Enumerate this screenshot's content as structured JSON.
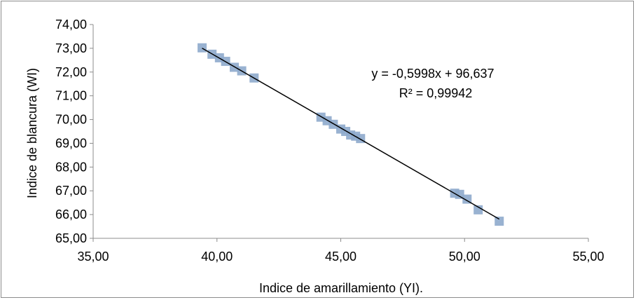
{
  "chart_data": {
    "type": "scatter",
    "title": "",
    "xlabel": "Indice de amarillamiento (YI).",
    "ylabel": "Indice de blancura (WI)",
    "xlim": [
      35,
      55
    ],
    "ylim": [
      65,
      74
    ],
    "x_ticks": [
      "35,00",
      "40,00",
      "45,00",
      "50,00",
      "55,00"
    ],
    "y_ticks": [
      "65,00",
      "66,00",
      "67,00",
      "68,00",
      "69,00",
      "70,00",
      "71,00",
      "72,00",
      "73,00",
      "74,00"
    ],
    "grid": false,
    "legend": "none",
    "series": [
      {
        "marker": "square",
        "color": "#8eaacc",
        "points": [
          {
            "x": 39.4,
            "y": 73.02
          },
          {
            "x": 39.8,
            "y": 72.75
          },
          {
            "x": 40.1,
            "y": 72.6
          },
          {
            "x": 40.35,
            "y": 72.45
          },
          {
            "x": 40.7,
            "y": 72.2
          },
          {
            "x": 41.0,
            "y": 72.05
          },
          {
            "x": 41.5,
            "y": 71.75
          },
          {
            "x": 44.2,
            "y": 70.1
          },
          {
            "x": 44.45,
            "y": 69.95
          },
          {
            "x": 44.7,
            "y": 69.8
          },
          {
            "x": 45.0,
            "y": 69.6
          },
          {
            "x": 45.2,
            "y": 69.5
          },
          {
            "x": 45.4,
            "y": 69.35
          },
          {
            "x": 45.6,
            "y": 69.3
          },
          {
            "x": 45.8,
            "y": 69.2
          },
          {
            "x": 49.6,
            "y": 66.9
          },
          {
            "x": 49.8,
            "y": 66.85
          },
          {
            "x": 50.1,
            "y": 66.65
          },
          {
            "x": 50.55,
            "y": 66.2
          },
          {
            "x": 51.4,
            "y": 65.72
          }
        ]
      }
    ],
    "trendline": {
      "type": "linear",
      "slope": -0.5998,
      "intercept": 96.637,
      "x_range": [
        39.4,
        51.4
      ],
      "color": "#000000",
      "equation_label": "y = -0,5998x + 96,637",
      "r2_label": "R² = 0,99942"
    }
  }
}
